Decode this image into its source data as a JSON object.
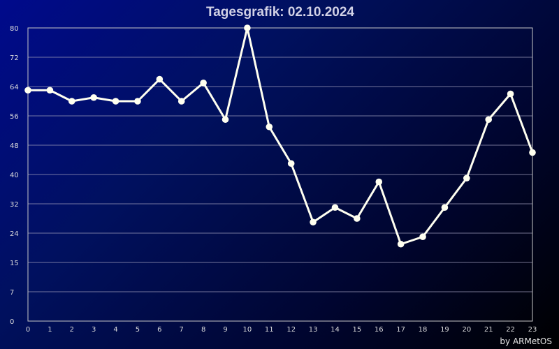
{
  "chart_data": {
    "type": "line",
    "title": "Tagesgrafik: 02.10.2024",
    "credit": "by ARMetOS",
    "x": [
      0,
      1,
      2,
      3,
      4,
      5,
      6,
      7,
      8,
      9,
      10,
      11,
      12,
      13,
      14,
      15,
      16,
      17,
      18,
      19,
      20,
      21,
      22,
      23
    ],
    "series": [
      {
        "values": [
          63,
          63,
          60,
          61,
          60,
          60,
          66,
          60,
          65,
          55,
          80,
          53,
          43,
          27,
          31,
          28,
          38,
          21,
          23,
          31,
          39,
          55,
          62,
          46
        ]
      }
    ],
    "y_ticks": [
      "0",
      "7",
      "15",
      "24",
      "32",
      "40",
      "48",
      "56",
      "64",
      "72",
      "80"
    ],
    "ylim": [
      0,
      80
    ],
    "xlim": [
      0,
      23
    ],
    "grid": true,
    "colors": {
      "line": "#fffff0",
      "grid": "#9a9ab8",
      "background_start": "#000a8c",
      "background_end": "#000000"
    }
  }
}
